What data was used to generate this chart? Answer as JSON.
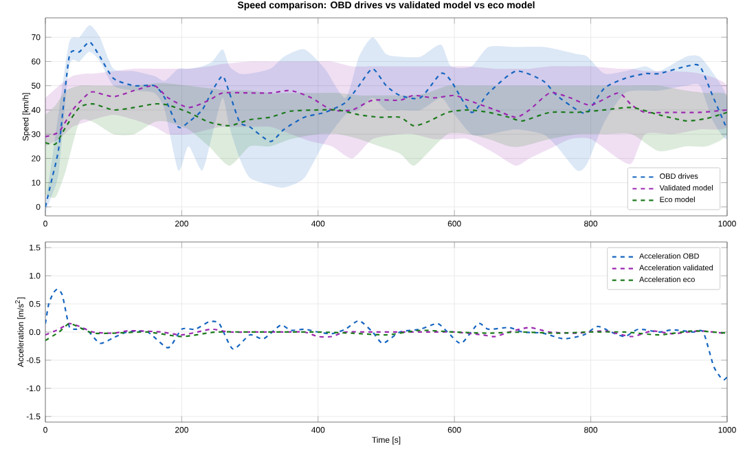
{
  "chart_data": [
    {
      "type": "line",
      "title": "Speed comparison: OBD drives vs validated model vs eco model",
      "ylabel": "Speed [km/h]",
      "xlim": [
        0,
        1000
      ],
      "ylim": [
        -3.7,
        78
      ],
      "xticks": [
        0,
        200,
        400,
        600,
        800,
        1000
      ],
      "yticks": [
        0,
        10,
        20,
        30,
        40,
        50,
        60,
        70
      ],
      "grid": true,
      "legend": "bottom right",
      "line_style": "dashed",
      "series": [
        {
          "name": "OBD drives",
          "color": "#1565c0",
          "x": [
            0,
            10,
            20,
            35,
            50,
            65,
            80,
            100,
            130,
            160,
            175,
            195,
            210,
            230,
            245,
            260,
            270,
            285,
            300,
            330,
            350,
            380,
            410,
            440,
            460,
            480,
            500,
            520,
            550,
            580,
            595,
            625,
            650,
            690,
            730,
            750,
            780,
            795,
            820,
            850,
            880,
            900,
            940,
            960,
            980,
            1000
          ],
          "values": [
            0,
            12,
            25,
            62,
            64,
            68,
            62,
            53,
            50,
            50,
            45,
            33,
            35,
            40,
            48,
            54,
            47,
            35,
            33,
            27,
            32,
            37,
            39,
            43,
            50,
            57,
            50,
            46,
            45,
            55,
            52,
            39,
            47,
            56,
            52,
            46,
            40,
            39,
            49,
            53,
            55,
            55,
            58,
            58,
            45,
            32
          ],
          "upper": [
            2,
            20,
            40,
            68,
            70,
            75,
            70,
            57,
            56,
            54,
            52,
            57,
            57,
            58,
            60,
            65,
            58,
            55,
            55,
            57,
            62,
            65,
            57,
            45,
            62,
            70,
            63,
            62,
            62,
            67,
            58,
            58,
            66,
            66,
            66,
            65,
            63,
            62,
            55,
            56,
            58,
            56,
            62,
            62,
            55,
            45
          ],
          "lower": [
            -2,
            5,
            15,
            58,
            60,
            64,
            60,
            50,
            48,
            47,
            40,
            15,
            25,
            15,
            30,
            45,
            33,
            20,
            12,
            9,
            8,
            12,
            27,
            38,
            40,
            45,
            40,
            40,
            40,
            45,
            40,
            30,
            30,
            32,
            30,
            25,
            15,
            18,
            35,
            47,
            48,
            48,
            50,
            50,
            35,
            28
          ]
        },
        {
          "name": "Validated model",
          "color": "#9c27b0",
          "x": [
            0,
            20,
            40,
            60,
            70,
            100,
            130,
            160,
            180,
            210,
            240,
            260,
            300,
            330,
            360,
            390,
            420,
            450,
            480,
            520,
            540,
            570,
            600,
            620,
            660,
            690,
            710,
            740,
            770,
            800,
            840,
            860,
            880,
            920,
            960,
            1000
          ],
          "values": [
            29,
            31,
            40,
            46,
            47.5,
            45.5,
            48,
            50,
            45,
            41,
            44,
            47,
            47,
            47,
            48,
            45,
            40,
            40,
            44,
            44,
            46,
            45,
            46,
            44,
            40,
            37,
            40,
            47,
            45,
            42,
            47,
            42,
            39,
            39,
            39,
            40
          ],
          "upper": [
            45,
            50,
            54,
            55,
            55,
            56,
            57,
            57,
            57,
            57,
            58,
            59,
            60,
            60,
            60,
            60,
            60,
            58,
            58,
            58,
            58,
            58,
            58,
            58,
            57,
            57,
            57,
            58,
            58,
            58,
            57,
            57,
            56,
            56,
            55,
            50
          ],
          "lower": [
            25,
            28,
            33,
            35,
            36,
            38,
            36,
            33,
            30,
            30,
            32,
            33,
            33,
            33,
            30,
            27,
            25,
            20,
            28,
            30,
            30,
            28,
            28,
            28,
            22,
            17,
            20,
            24,
            28,
            28,
            20,
            18,
            30,
            30,
            32,
            33
          ]
        },
        {
          "name": "Eco model",
          "color": "#1b7a1b",
          "x": [
            0,
            15,
            30,
            50,
            70,
            100,
            130,
            160,
            180,
            210,
            240,
            270,
            300,
            330,
            360,
            400,
            430,
            460,
            490,
            520,
            540,
            560,
            590,
            620,
            650,
            680,
            700,
            740,
            780,
            820,
            860,
            900,
            940,
            970,
            1000
          ],
          "values": [
            26.5,
            26,
            33,
            41,
            42.5,
            40,
            41,
            42.5,
            42,
            39,
            35,
            33.5,
            36,
            37,
            39.5,
            40,
            40,
            38,
            37,
            37,
            33.5,
            35,
            39,
            40,
            39,
            37,
            35.5,
            39,
            39,
            40,
            41,
            38,
            35.5,
            36.5,
            39
          ],
          "upper": [
            38,
            42,
            48,
            50,
            50,
            50,
            50,
            51,
            51,
            50,
            49,
            48,
            48,
            47,
            47,
            47,
            47,
            46,
            46,
            46,
            46,
            47,
            50,
            50,
            50,
            50,
            50,
            50,
            50,
            50,
            50,
            50,
            48,
            47,
            46
          ],
          "lower": [
            5,
            4,
            15,
            35,
            35,
            30,
            30,
            35,
            35,
            32,
            25,
            17,
            25,
            25,
            28,
            30,
            30,
            28,
            25,
            22,
            17,
            22,
            30,
            30,
            28,
            25,
            25,
            28,
            30,
            30,
            30,
            23,
            25,
            25,
            30
          ]
        }
      ]
    },
    {
      "type": "line",
      "xlabel": "Time [s]",
      "ylabel": "Acceleration [m/s$^{2}$]",
      "xlim": [
        0,
        1000
      ],
      "ylim": [
        -1.6,
        1.6
      ],
      "xticks": [
        0,
        200,
        400,
        600,
        800,
        1000
      ],
      "yticks": [
        -1.5,
        {
          "value": -1,
          "label": "-1.0"
        },
        -0.5,
        {
          "value": 0,
          "label": "0.0"
        },
        0.5,
        {
          "value": 1,
          "label": "1.0"
        },
        1.5
      ],
      "grid": true,
      "legend": "top right",
      "line_style": "dashed",
      "series": [
        {
          "name": "Acceleration OBD",
          "color": "#1565c0",
          "x": [
            0,
            5,
            12,
            18,
            25,
            35,
            45,
            60,
            80,
            100,
            120,
            150,
            180,
            200,
            220,
            240,
            255,
            275,
            300,
            320,
            345,
            360,
            380,
            400,
            420,
            440,
            460,
            480,
            495,
            520,
            550,
            575,
            590,
            610,
            635,
            650,
            680,
            700,
            730,
            760,
            790,
            810,
            830,
            850,
            870,
            900,
            920,
            950,
            965,
            980,
            990,
            995,
            1000
          ],
          "values": [
            0.15,
            0.5,
            0.7,
            0.76,
            0.65,
            0.1,
            0.05,
            0.05,
            -0.2,
            -0.1,
            0.0,
            0.0,
            -0.28,
            0.05,
            0.05,
            0.18,
            0.15,
            -0.3,
            -0.05,
            -0.12,
            0.12,
            0.03,
            0.05,
            0.0,
            -0.03,
            0.05,
            0.2,
            0.0,
            -0.2,
            0.0,
            0.05,
            0.15,
            0.0,
            -0.2,
            0.15,
            0.05,
            0.08,
            0.0,
            -0.02,
            -0.12,
            -0.05,
            0.1,
            0.0,
            -0.08,
            0.05,
            0.0,
            0.04,
            0.0,
            0.0,
            -0.6,
            -0.8,
            -0.85,
            -0.8
          ]
        },
        {
          "name": "Acceleration validated",
          "color": "#9c27b0",
          "x": [
            0,
            20,
            35,
            50,
            70,
            100,
            120,
            140,
            170,
            200,
            230,
            245,
            270,
            300,
            350,
            380,
            400,
            420,
            440,
            480,
            520,
            560,
            600,
            640,
            660,
            680,
            710,
            740,
            780,
            820,
            860,
            890,
            920,
            960,
            1000
          ],
          "values": [
            -0.05,
            0.05,
            0.15,
            0.1,
            0.0,
            -0.02,
            0.02,
            0.02,
            0.0,
            -0.05,
            0.02,
            0.05,
            0.0,
            0.0,
            0.0,
            0.0,
            -0.08,
            -0.08,
            0.0,
            0.0,
            0.0,
            0.0,
            0.0,
            -0.05,
            -0.08,
            0.0,
            0.08,
            0.0,
            -0.02,
            0.02,
            -0.08,
            0.02,
            -0.03,
            0.02,
            -0.03
          ]
        },
        {
          "name": "Acceleration eco",
          "color": "#1b7a1b",
          "x": [
            0,
            20,
            35,
            50,
            70,
            100,
            150,
            200,
            250,
            300,
            350,
            400,
            450,
            500,
            550,
            600,
            650,
            700,
            750,
            800,
            850,
            900,
            950,
            1000
          ],
          "values": [
            -0.15,
            0.0,
            0.15,
            0.08,
            -0.02,
            -0.02,
            0.0,
            -0.08,
            0.0,
            0.0,
            0.0,
            0.0,
            -0.02,
            -0.05,
            0.03,
            0.0,
            -0.02,
            0.0,
            -0.02,
            0.0,
            0.0,
            -0.05,
            0.02,
            -0.02
          ]
        }
      ]
    }
  ]
}
